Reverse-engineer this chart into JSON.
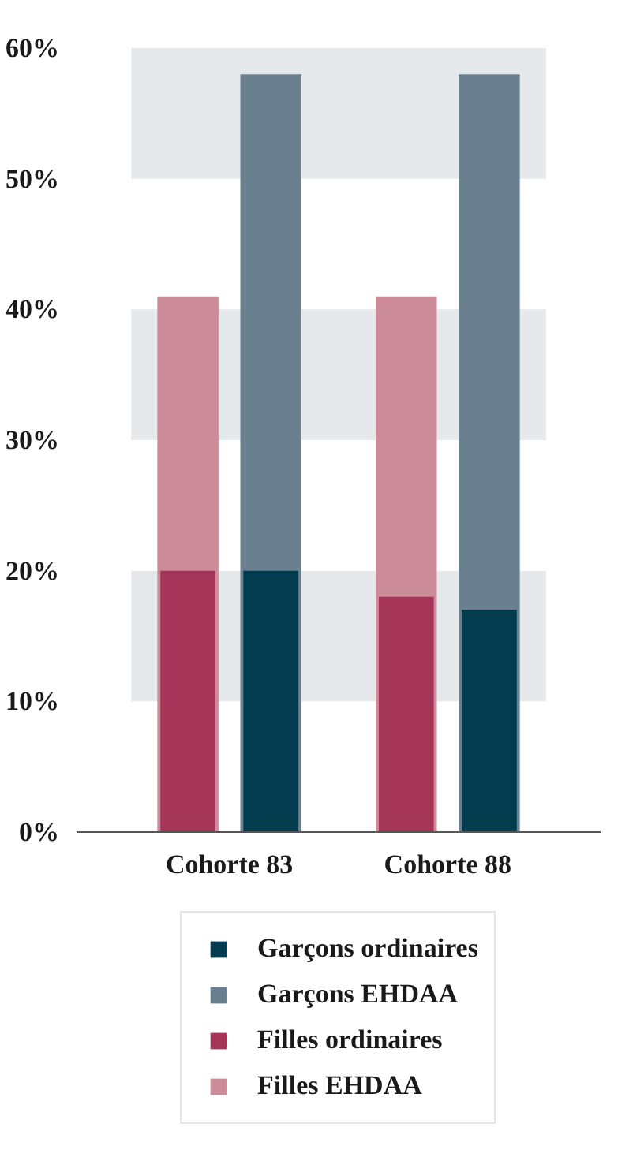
{
  "chart_data": {
    "type": "bar",
    "categories": [
      "Cohorte 83",
      "Cohorte 88"
    ],
    "series": [
      {
        "name": "Garçons ordinaires",
        "color": "#023c4e",
        "values": [
          20,
          17
        ]
      },
      {
        "name": "Garçons EHDAA",
        "color": "#6a808f",
        "values": [
          58,
          58
        ]
      },
      {
        "name": "Filles ordinaires",
        "color": "#a5365a",
        "values": [
          20,
          18
        ]
      },
      {
        "name": "Filles EHDAA",
        "color": "#cc8b98",
        "values": [
          41,
          41
        ]
      }
    ],
    "ylim": [
      0,
      60
    ],
    "yticks": [
      {
        "value": 0,
        "label": "0%"
      },
      {
        "value": 10,
        "label": "10%"
      },
      {
        "value": 20,
        "label": "20%"
      },
      {
        "value": 30,
        "label": "30%"
      },
      {
        "value": 40,
        "label": "40%"
      },
      {
        "value": 50,
        "label": "50%"
      },
      {
        "value": 60,
        "label": "60%"
      }
    ],
    "bands": [
      {
        "axis": "y",
        "from": 10,
        "to": 20,
        "color": "#e6e9ec"
      },
      {
        "axis": "y",
        "from": 30,
        "to": 40,
        "color": "#e6e9ec"
      },
      {
        "axis": "y",
        "from": 50,
        "to": 60,
        "color": "#e6e9ec"
      }
    ],
    "grid": false,
    "legend": "bottom"
  }
}
